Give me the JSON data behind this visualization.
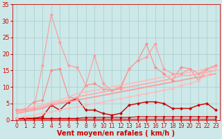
{
  "background_color": "#cce8e8",
  "grid_color": "#aacccc",
  "xlabel": "Vent moyen/en rafales ( km/h )",
  "xlabel_color": "#cc0000",
  "xlabel_fontsize": 7,
  "xtick_fontsize": 5.5,
  "ytick_fontsize": 6,
  "tick_color": "#cc0000",
  "xlim": [
    -0.5,
    23.5
  ],
  "ylim": [
    0,
    35
  ],
  "yticks": [
    0,
    5,
    10,
    15,
    20,
    25,
    30,
    35
  ],
  "xticks": [
    0,
    1,
    2,
    3,
    4,
    5,
    6,
    7,
    8,
    9,
    10,
    11,
    12,
    13,
    14,
    15,
    16,
    17,
    18,
    19,
    20,
    21,
    22,
    23
  ],
  "lines": [
    {
      "x": [
        0,
        1,
        2,
        3,
        4,
        5,
        6,
        7,
        8,
        9,
        10,
        11,
        12,
        13,
        14,
        15,
        16,
        17,
        18,
        19,
        20,
        21,
        22,
        23
      ],
      "y": [
        0.3,
        0.3,
        0.3,
        0.3,
        0.3,
        0.3,
        0.3,
        0.3,
        0.3,
        0.3,
        0.3,
        0.3,
        0.3,
        0.3,
        0.3,
        0.3,
        0.3,
        0.3,
        0.3,
        0.3,
        0.3,
        0.3,
        0.3,
        0.3
      ],
      "color": "#cc0000",
      "marker": ">",
      "markersize": 2,
      "linewidth": 0.8,
      "alpha": 1.0
    },
    {
      "x": [
        0,
        1,
        2,
        3,
        4,
        5,
        6,
        7,
        8,
        9,
        10,
        11,
        12,
        13,
        14,
        15,
        16,
        17,
        18,
        19,
        20,
        21,
        22,
        23
      ],
      "y": [
        0.5,
        0.5,
        0.5,
        0.5,
        0.5,
        0.5,
        0.5,
        0.5,
        0.8,
        0.8,
        0.8,
        0.8,
        0.8,
        0.8,
        1.0,
        1.0,
        1.0,
        1.0,
        1.0,
        1.0,
        1.0,
        1.0,
        1.0,
        1.0
      ],
      "color": "#cc0000",
      "marker": "D",
      "markersize": 1.8,
      "linewidth": 0.8,
      "alpha": 1.0
    },
    {
      "x": [
        0,
        1,
        2,
        3,
        4,
        5,
        6,
        7,
        8,
        9,
        10,
        11,
        12,
        13,
        14,
        15,
        16,
        17,
        18,
        19,
        20,
        21,
        22,
        23
      ],
      "y": [
        0.5,
        0.5,
        0.5,
        1.0,
        4.5,
        3.0,
        5.5,
        6.5,
        3.0,
        3.0,
        2.0,
        1.5,
        2.0,
        4.5,
        5.0,
        5.5,
        5.5,
        5.0,
        3.5,
        3.5,
        3.5,
        4.5,
        5.0,
        3.0
      ],
      "color": "#cc0000",
      "marker": "D",
      "markersize": 2.2,
      "linewidth": 1.0,
      "alpha": 1.0
    },
    {
      "x": [
        0,
        1,
        2,
        3,
        4,
        5,
        6,
        7,
        8,
        9,
        10,
        11,
        12,
        13,
        14,
        15,
        16,
        17,
        18,
        19,
        20,
        21,
        22,
        23
      ],
      "y": [
        3.0,
        3.2,
        5.5,
        6.0,
        15.0,
        15.5,
        7.0,
        6.5,
        10.5,
        11.0,
        9.5,
        9.0,
        10.0,
        15.5,
        18.0,
        23.0,
        16.0,
        14.0,
        12.0,
        16.0,
        15.5,
        12.0,
        15.5,
        16.5
      ],
      "color": "#ff8888",
      "marker": "D",
      "markersize": 2.2,
      "linewidth": 0.8,
      "alpha": 1.0
    },
    {
      "x": [
        0,
        1,
        2,
        3,
        4,
        5,
        6,
        7,
        8,
        9,
        10,
        11,
        12,
        13,
        14,
        15,
        16,
        17,
        18,
        19,
        20,
        21,
        22,
        23
      ],
      "y": [
        3.0,
        3.5,
        4.0,
        4.5,
        5.5,
        6.0,
        7.0,
        8.0,
        8.5,
        9.0,
        9.5,
        10.0,
        10.5,
        11.0,
        11.5,
        12.0,
        12.5,
        13.0,
        13.5,
        14.0,
        14.5,
        15.0,
        15.5,
        16.0
      ],
      "color": "#ffbbbb",
      "marker": null,
      "markersize": 0,
      "linewidth": 1.2,
      "alpha": 1.0
    },
    {
      "x": [
        0,
        1,
        2,
        3,
        4,
        5,
        6,
        7,
        8,
        9,
        10,
        11,
        12,
        13,
        14,
        15,
        16,
        17,
        18,
        19,
        20,
        21,
        22,
        23
      ],
      "y": [
        2.5,
        3.0,
        3.5,
        4.0,
        5.0,
        5.5,
        6.0,
        7.0,
        7.5,
        8.0,
        8.5,
        9.0,
        9.5,
        10.0,
        10.5,
        11.0,
        11.5,
        12.0,
        12.5,
        13.5,
        13.5,
        14.0,
        14.5,
        15.0
      ],
      "color": "#ffaaaa",
      "marker": null,
      "markersize": 0,
      "linewidth": 1.2,
      "alpha": 1.0
    },
    {
      "x": [
        0,
        1,
        2,
        3,
        4,
        5,
        6,
        7,
        8,
        9,
        10,
        11,
        12,
        13,
        14,
        15,
        16,
        17,
        18,
        19,
        20,
        21,
        22,
        23
      ],
      "y": [
        2.0,
        2.5,
        3.0,
        3.5,
        4.5,
        5.0,
        5.5,
        6.0,
        6.5,
        7.0,
        7.5,
        8.0,
        8.5,
        9.0,
        9.5,
        10.0,
        10.5,
        11.0,
        11.5,
        12.0,
        12.5,
        13.0,
        13.5,
        14.0
      ],
      "color": "#ff9999",
      "marker": null,
      "markersize": 0,
      "linewidth": 1.2,
      "alpha": 1.0
    },
    {
      "x": [
        0,
        1,
        2,
        3,
        4,
        5,
        6,
        7,
        8,
        9,
        10,
        11,
        12,
        13,
        14,
        15,
        16,
        17,
        18,
        19,
        20,
        21,
        22,
        23
      ],
      "y": [
        0.5,
        1.0,
        1.5,
        2.0,
        2.5,
        3.0,
        3.5,
        4.0,
        4.5,
        5.0,
        5.5,
        6.0,
        6.5,
        7.0,
        7.5,
        8.0,
        8.5,
        9.0,
        9.5,
        10.5,
        11.0,
        12.0,
        13.5,
        15.5
      ],
      "color": "#ffbbbb",
      "marker": "D",
      "markersize": 2.2,
      "linewidth": 1.0,
      "alpha": 1.0
    },
    {
      "x": [
        0,
        1,
        2,
        3,
        4,
        5,
        6,
        7,
        8,
        9,
        10,
        11,
        12,
        13,
        14,
        15,
        16,
        17,
        18,
        19,
        20,
        21,
        22,
        23
      ],
      "y": [
        3.0,
        3.2,
        3.5,
        16.5,
        32.0,
        23.5,
        16.5,
        16.0,
        10.5,
        19.5,
        11.0,
        9.0,
        9.5,
        15.5,
        18.0,
        19.0,
        23.0,
        15.5,
        14.0,
        14.0,
        15.5,
        14.0,
        15.5,
        16.5
      ],
      "color": "#ff9999",
      "marker": "D",
      "markersize": 2.2,
      "linewidth": 0.8,
      "alpha": 1.0
    }
  ]
}
